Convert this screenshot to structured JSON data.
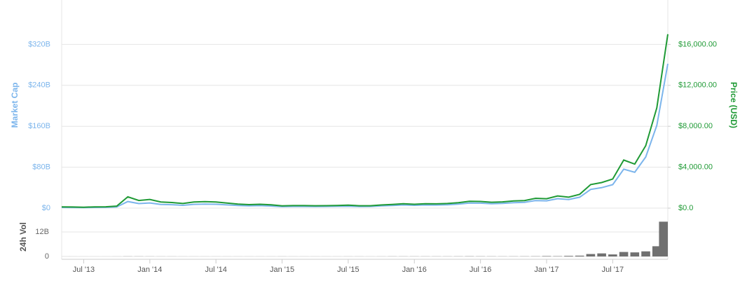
{
  "chart_data": [
    {
      "type": "line",
      "ylabel": "Market Cap",
      "y2label": "Price (USD)",
      "x": [
        "2013-05",
        "2013-06",
        "2013-07",
        "2013-08",
        "2013-09",
        "2013-10",
        "2013-11",
        "2013-12",
        "2014-01",
        "2014-02",
        "2014-03",
        "2014-04",
        "2014-05",
        "2014-06",
        "2014-07",
        "2014-08",
        "2014-09",
        "2014-10",
        "2014-11",
        "2014-12",
        "2015-01",
        "2015-02",
        "2015-03",
        "2015-04",
        "2015-05",
        "2015-06",
        "2015-07",
        "2015-08",
        "2015-09",
        "2015-10",
        "2015-11",
        "2015-12",
        "2016-01",
        "2016-02",
        "2016-03",
        "2016-04",
        "2016-05",
        "2016-06",
        "2016-07",
        "2016-08",
        "2016-09",
        "2016-10",
        "2016-11",
        "2016-12",
        "2017-01",
        "2017-02",
        "2017-03",
        "2017-04",
        "2017-05",
        "2017-06",
        "2017-07",
        "2017-08",
        "2017-09",
        "2017-10",
        "2017-11",
        "2017-12"
      ],
      "series": [
        {
          "color": "#7cb5ec",
          "values": [
            1.33,
            1.23,
            1.02,
            1.37,
            1.5,
            2.32,
            12.87,
            8.85,
            10.1,
            7.2,
            6.66,
            5.49,
            7.38,
            7.94,
            7.5,
            6.3,
            5.08,
            4.35,
            4.9,
            4.16,
            2.88,
            3.3,
            3.33,
            3.08,
            3.24,
            3.54,
            3.9,
            3.17,
            3.27,
            4.34,
            5.08,
            6.11,
            5.43,
            6.19,
            6.02,
            6.57,
            7.79,
            9.92,
            9.69,
            8.63,
            9.21,
            10.64,
            11.32,
            14.78,
            14.26,
            18.56,
            16.8,
            21.33,
            36.57,
            40,
            45.89,
            76.14,
            70.09,
            100.04,
            161.7,
            282.2
          ]
        },
        {
          "color": "#1f9a35",
          "axis": "y2",
          "values": [
            120,
            110,
            90,
            120,
            130,
            200,
            1100,
            750,
            850,
            600,
            550,
            450,
            600,
            640,
            600,
            500,
            400,
            340,
            380,
            320,
            220,
            250,
            250,
            230,
            240,
            260,
            285,
            230,
            235,
            310,
            360,
            430,
            380,
            430,
            415,
            450,
            530,
            670,
            650,
            575,
            610,
            700,
            740,
            960,
            920,
            1190,
            1070,
            1350,
            2300,
            2500,
            2850,
            4700,
            4300,
            6100,
            9800,
            17000
          ]
        }
      ],
      "ylim": [
        0,
        400
      ],
      "yticks": [
        {
          "value": 0,
          "label": "$0"
        },
        {
          "value": 80,
          "label": "$80B"
        },
        {
          "value": 160,
          "label": "$160B"
        },
        {
          "value": 240,
          "label": "$240B"
        },
        {
          "value": 320,
          "label": "$320B"
        }
      ],
      "y2lim": [
        0,
        20000
      ],
      "y2ticks": [
        {
          "value": 0,
          "label": "$0.0"
        },
        {
          "value": 4000,
          "label": "$4,000.00"
        },
        {
          "value": 8000,
          "label": "$8,000.00"
        },
        {
          "value": 12000,
          "label": "$12,000.00"
        },
        {
          "value": 16000,
          "label": "$16,000.00"
        }
      ],
      "grid": true
    },
    {
      "type": "bar",
      "ylabel": "24h Vol",
      "color": "#707070",
      "x": [
        "2013-05",
        "2013-06",
        "2013-07",
        "2013-08",
        "2013-09",
        "2013-10",
        "2013-11",
        "2013-12",
        "2014-01",
        "2014-02",
        "2014-03",
        "2014-04",
        "2014-05",
        "2014-06",
        "2014-07",
        "2014-08",
        "2014-09",
        "2014-10",
        "2014-11",
        "2014-12",
        "2015-01",
        "2015-02",
        "2015-03",
        "2015-04",
        "2015-05",
        "2015-06",
        "2015-07",
        "2015-08",
        "2015-09",
        "2015-10",
        "2015-11",
        "2015-12",
        "2016-01",
        "2016-02",
        "2016-03",
        "2016-04",
        "2016-05",
        "2016-06",
        "2016-07",
        "2016-08",
        "2016-09",
        "2016-10",
        "2016-11",
        "2016-12",
        "2017-01",
        "2017-02",
        "2017-03",
        "2017-04",
        "2017-05",
        "2017-06",
        "2017-07",
        "2017-08",
        "2017-09",
        "2017-10",
        "2017-11",
        "2017-12"
      ],
      "values": [
        0.01,
        0.01,
        0.01,
        0.01,
        0.01,
        0.02,
        0.06,
        0.05,
        0.04,
        0.03,
        0.03,
        0.02,
        0.02,
        0.02,
        0.02,
        0.02,
        0.02,
        0.02,
        0.02,
        0.02,
        0.03,
        0.02,
        0.02,
        0.02,
        0.02,
        0.02,
        0.03,
        0.03,
        0.02,
        0.03,
        0.05,
        0.05,
        0.05,
        0.05,
        0.05,
        0.05,
        0.07,
        0.1,
        0.08,
        0.07,
        0.06,
        0.07,
        0.08,
        0.1,
        0.2,
        0.15,
        0.3,
        0.4,
        1.2,
        1.5,
        1.0,
        2.2,
        2.0,
        2.5,
        5,
        17
      ],
      "ylim": [
        0,
        22.6
      ],
      "yticks": [
        0,
        {
          "value": 12,
          "label": "12B"
        }
      ],
      "xticks": [
        {
          "value": "2013-07",
          "label": "Jul '13"
        },
        {
          "value": "2014-01",
          "label": "Jan '14"
        },
        {
          "value": "2014-07",
          "label": "Jul '14"
        },
        {
          "value": "2015-01",
          "label": "Jan '15"
        },
        {
          "value": "2015-07",
          "label": "Jul '15"
        },
        {
          "value": "2016-01",
          "label": "Jan '16"
        },
        {
          "value": "2016-07",
          "label": "Jul '16"
        },
        {
          "value": "2017-01",
          "label": "Jan '17"
        },
        {
          "value": "2017-07",
          "label": "Jul '17"
        }
      ],
      "grid": true
    }
  ]
}
